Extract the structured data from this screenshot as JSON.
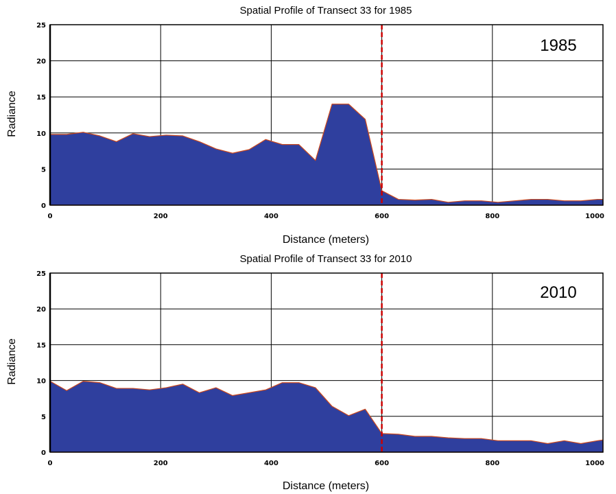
{
  "chart_data": [
    {
      "type": "area",
      "title": "Spatial Profile of Transect 33 for 1985",
      "xlabel": "Distance (meters)",
      "ylabel": "Radiance",
      "annotation": "1985",
      "xlim": [
        0,
        1000
      ],
      "ylim": [
        0,
        25
      ],
      "xticks": [
        0,
        200,
        400,
        600,
        800,
        1000
      ],
      "yticks": [
        0,
        5,
        10,
        15,
        20,
        25
      ],
      "grid": true,
      "fill_color": "#2f3f9e",
      "outline_color": "#cc4a1f",
      "reference_line": {
        "x": 600,
        "color": "#cc0000",
        "style": "dashed"
      },
      "x": [
        0,
        30,
        60,
        90,
        120,
        150,
        180,
        210,
        240,
        270,
        300,
        330,
        360,
        390,
        420,
        450,
        480,
        510,
        540,
        570,
        600,
        630,
        660,
        690,
        720,
        750,
        780,
        810,
        840,
        870,
        900,
        930,
        960,
        990,
        1000
      ],
      "values": [
        9.8,
        9.8,
        10.1,
        9.6,
        8.8,
        9.9,
        9.5,
        9.7,
        9.6,
        8.8,
        7.8,
        7.2,
        7.7,
        9.1,
        8.4,
        8.4,
        6.2,
        14.0,
        14.0,
        11.9,
        2.0,
        0.8,
        0.7,
        0.8,
        0.4,
        0.6,
        0.6,
        0.4,
        0.6,
        0.8,
        0.8,
        0.6,
        0.6,
        0.8,
        0.8
      ]
    },
    {
      "type": "area",
      "title": "Spatial Profile of Transect 33 for 2010",
      "xlabel": "Distance (meters)",
      "ylabel": "Radiance",
      "annotation": "2010",
      "xlim": [
        0,
        1000
      ],
      "ylim": [
        0,
        25
      ],
      "xticks": [
        0,
        200,
        400,
        600,
        800,
        1000
      ],
      "yticks": [
        0,
        5,
        10,
        15,
        20,
        25
      ],
      "grid": true,
      "fill_color": "#2f3f9e",
      "outline_color": "#cc4a1f",
      "reference_line": {
        "x": 600,
        "color": "#cc0000",
        "style": "dashed"
      },
      "x": [
        0,
        30,
        60,
        90,
        120,
        150,
        180,
        210,
        240,
        270,
        300,
        330,
        360,
        390,
        420,
        450,
        480,
        510,
        540,
        570,
        600,
        630,
        660,
        690,
        720,
        750,
        780,
        810,
        840,
        870,
        900,
        930,
        960,
        990,
        1000
      ],
      "values": [
        9.9,
        8.6,
        9.9,
        9.7,
        8.9,
        8.9,
        8.7,
        9.0,
        9.5,
        8.3,
        9.0,
        7.9,
        8.3,
        8.7,
        9.7,
        9.7,
        9.0,
        6.4,
        5.1,
        6.0,
        2.6,
        2.5,
        2.2,
        2.2,
        2.0,
        1.9,
        1.9,
        1.6,
        1.6,
        1.6,
        1.2,
        1.6,
        1.2,
        1.6,
        1.7
      ]
    }
  ]
}
